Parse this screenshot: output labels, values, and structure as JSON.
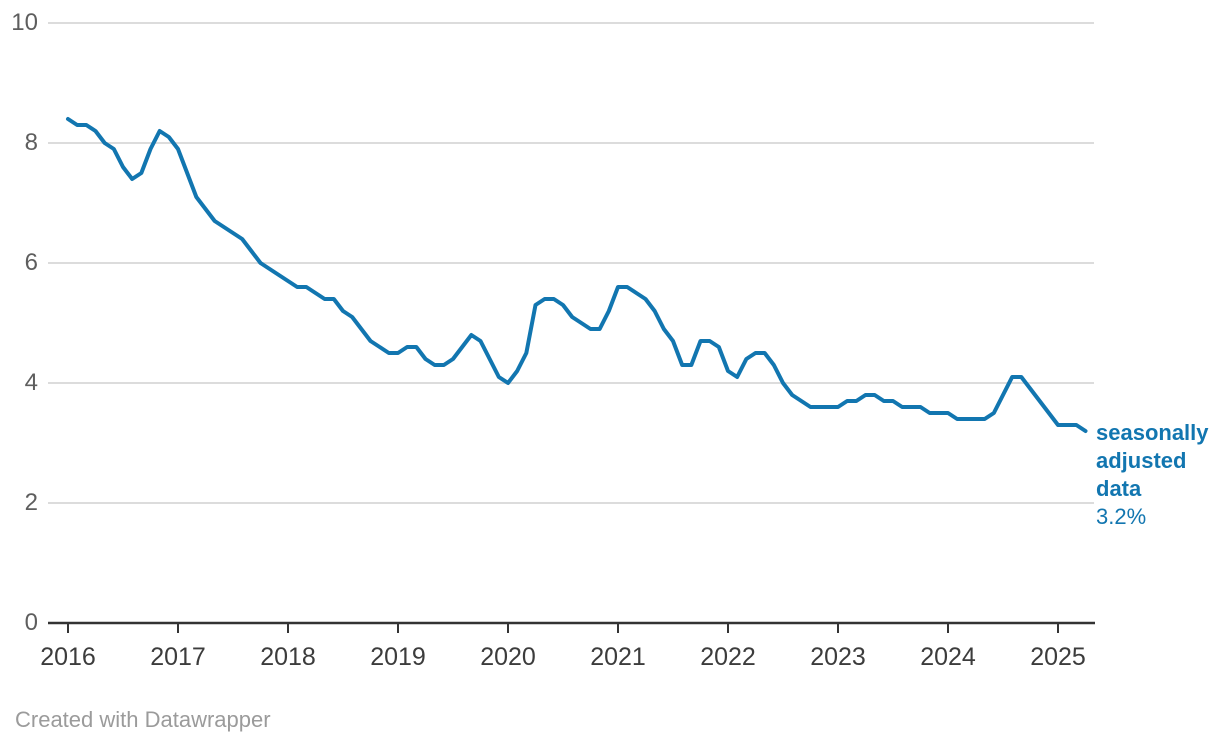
{
  "chart": {
    "annotation": {
      "label": "seasonally adjusted data",
      "value": "3.2%"
    }
  },
  "footer": {
    "credit": "Created with Datawrapper"
  },
  "chart_data": {
    "type": "line",
    "title": "",
    "xlabel": "",
    "ylabel": "",
    "x_start": "2016-01",
    "x_end": "2025-04",
    "frequency": "monthly",
    "series": [
      {
        "name": "seasonally adjusted data",
        "values": [
          8.4,
          8.3,
          8.3,
          8.2,
          8.0,
          7.9,
          7.6,
          7.4,
          7.5,
          7.9,
          8.2,
          8.1,
          7.9,
          7.5,
          7.1,
          6.9,
          6.7,
          6.6,
          6.5,
          6.4,
          6.2,
          6.0,
          5.9,
          5.8,
          5.7,
          5.6,
          5.6,
          5.5,
          5.4,
          5.4,
          5.2,
          5.1,
          4.9,
          4.7,
          4.6,
          4.5,
          4.5,
          4.6,
          4.6,
          4.4,
          4.3,
          4.3,
          4.4,
          4.6,
          4.8,
          4.7,
          4.4,
          4.1,
          4.0,
          4.2,
          4.5,
          5.3,
          5.4,
          5.4,
          5.3,
          5.1,
          5.0,
          4.9,
          4.9,
          5.2,
          5.6,
          5.6,
          5.5,
          5.4,
          5.2,
          4.9,
          4.7,
          4.3,
          4.3,
          4.7,
          4.7,
          4.6,
          4.2,
          4.1,
          4.4,
          4.5,
          4.5,
          4.3,
          4.0,
          3.8,
          3.7,
          3.6,
          3.6,
          3.6,
          3.6,
          3.7,
          3.7,
          3.8,
          3.8,
          3.7,
          3.7,
          3.6,
          3.6,
          3.6,
          3.5,
          3.5,
          3.5,
          3.4,
          3.4,
          3.4,
          3.4,
          3.5,
          3.8,
          4.1,
          4.1,
          3.9,
          3.7,
          3.5,
          3.3,
          3.3,
          3.3,
          3.2
        ]
      }
    ],
    "last_value_label": "3.2%",
    "end_annotation": "seasonally adjusted data",
    "ylim": [
      0,
      10
    ],
    "yticks": [
      0,
      2,
      4,
      6,
      8,
      10
    ],
    "xticks": [
      "2016",
      "2017",
      "2018",
      "2019",
      "2020",
      "2021",
      "2022",
      "2023",
      "2024",
      "2025"
    ],
    "grid": "horizontal",
    "legend_position": "end-of-line",
    "colors": {
      "line": "#1276b0",
      "grid": "#dcdcdc",
      "axis": "#333333",
      "y_label": "#5e5e5e",
      "x_label": "#3c3c3c",
      "annotation": "#1276b0",
      "credit": "#9b9b9b"
    }
  }
}
